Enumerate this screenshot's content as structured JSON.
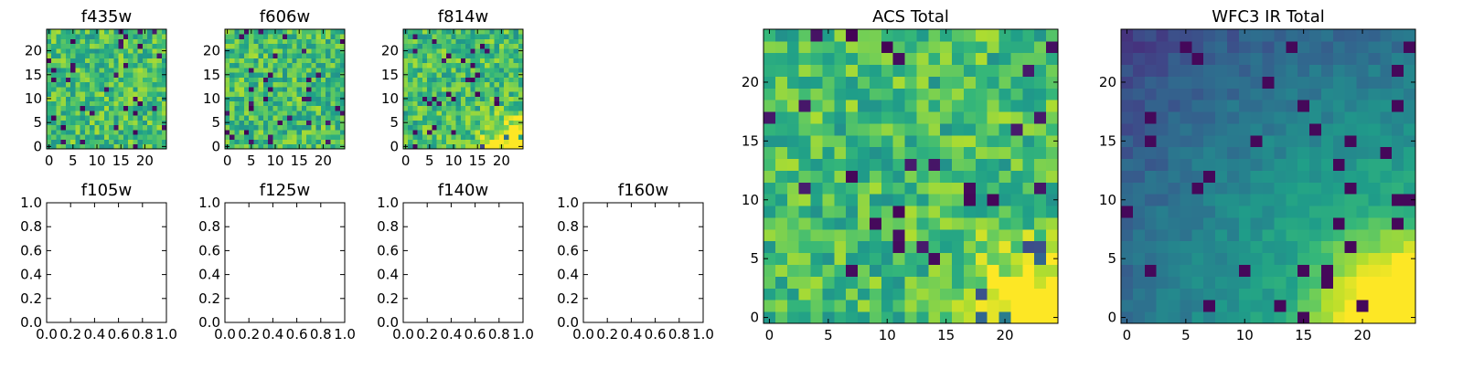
{
  "chart_data": [
    {
      "type": "heatmap",
      "title": "f435w",
      "grid_size": 25,
      "colormap": "viridis",
      "xlim": [
        -0.5,
        24.5
      ],
      "ylim": [
        -0.5,
        24.5
      ],
      "xticks": [
        "0",
        "5",
        "10",
        "15",
        "20"
      ],
      "yticks": [
        "0",
        "5",
        "10",
        "15",
        "20"
      ],
      "seed": 11,
      "pattern": "noise_high"
    },
    {
      "type": "heatmap",
      "title": "f606w",
      "grid_size": 25,
      "colormap": "viridis",
      "xlim": [
        -0.5,
        24.5
      ],
      "ylim": [
        -0.5,
        24.5
      ],
      "xticks": [
        "0",
        "5",
        "10",
        "15",
        "20"
      ],
      "yticks": [
        "0",
        "5",
        "10",
        "15",
        "20"
      ],
      "seed": 23,
      "pattern": "noise_high"
    },
    {
      "type": "heatmap",
      "title": "f814w",
      "grid_size": 25,
      "colormap": "viridis",
      "xlim": [
        -0.5,
        24.5
      ],
      "ylim": [
        -0.5,
        24.5
      ],
      "xticks": [
        "0",
        "5",
        "10",
        "15",
        "20"
      ],
      "yticks": [
        "0",
        "5",
        "10",
        "15",
        "20"
      ],
      "seed": 37,
      "pattern": "noise_corner"
    },
    {
      "type": "empty",
      "title": "f105w",
      "xlim": [
        0,
        1
      ],
      "ylim": [
        0,
        1
      ],
      "xticks": [
        "0.0",
        "0.2",
        "0.4",
        "0.6",
        "0.8",
        "1.0"
      ],
      "yticks": [
        "0.0",
        "0.2",
        "0.4",
        "0.6",
        "0.8",
        "1.0"
      ]
    },
    {
      "type": "empty",
      "title": "f125w",
      "xlim": [
        0,
        1
      ],
      "ylim": [
        0,
        1
      ],
      "xticks": [
        "0.0",
        "0.2",
        "0.4",
        "0.6",
        "0.8",
        "1.0"
      ],
      "yticks": [
        "0.0",
        "0.2",
        "0.4",
        "0.6",
        "0.8",
        "1.0"
      ]
    },
    {
      "type": "empty",
      "title": "f140w",
      "xlim": [
        0,
        1
      ],
      "ylim": [
        0,
        1
      ],
      "xticks": [
        "0.0",
        "0.2",
        "0.4",
        "0.6",
        "0.8",
        "1.0"
      ],
      "yticks": [
        "0.0",
        "0.2",
        "0.4",
        "0.6",
        "0.8",
        "1.0"
      ]
    },
    {
      "type": "empty",
      "title": "f160w",
      "xlim": [
        0,
        1
      ],
      "ylim": [
        0,
        1
      ],
      "xticks": [
        "0.0",
        "0.2",
        "0.4",
        "0.6",
        "0.8",
        "1.0"
      ],
      "yticks": [
        "0.0",
        "0.2",
        "0.4",
        "0.6",
        "0.8",
        "1.0"
      ]
    },
    {
      "type": "heatmap",
      "title": "ACS Total",
      "grid_size": 25,
      "colormap": "viridis",
      "xlim": [
        -0.5,
        24.5
      ],
      "ylim": [
        -0.5,
        24.5
      ],
      "xticks": [
        "0",
        "5",
        "10",
        "15",
        "20"
      ],
      "yticks": [
        "0",
        "5",
        "10",
        "15",
        "20"
      ],
      "seed": 53,
      "pattern": "noise_corner"
    },
    {
      "type": "heatmap",
      "title": "WFC3 IR Total",
      "grid_size": 25,
      "colormap": "viridis",
      "xlim": [
        -0.5,
        24.5
      ],
      "ylim": [
        -0.5,
        24.5
      ],
      "xticks": [
        "0",
        "5",
        "10",
        "15",
        "20"
      ],
      "yticks": [
        "0",
        "5",
        "10",
        "15",
        "20"
      ],
      "seed": 71,
      "pattern": "smooth_corner"
    }
  ]
}
